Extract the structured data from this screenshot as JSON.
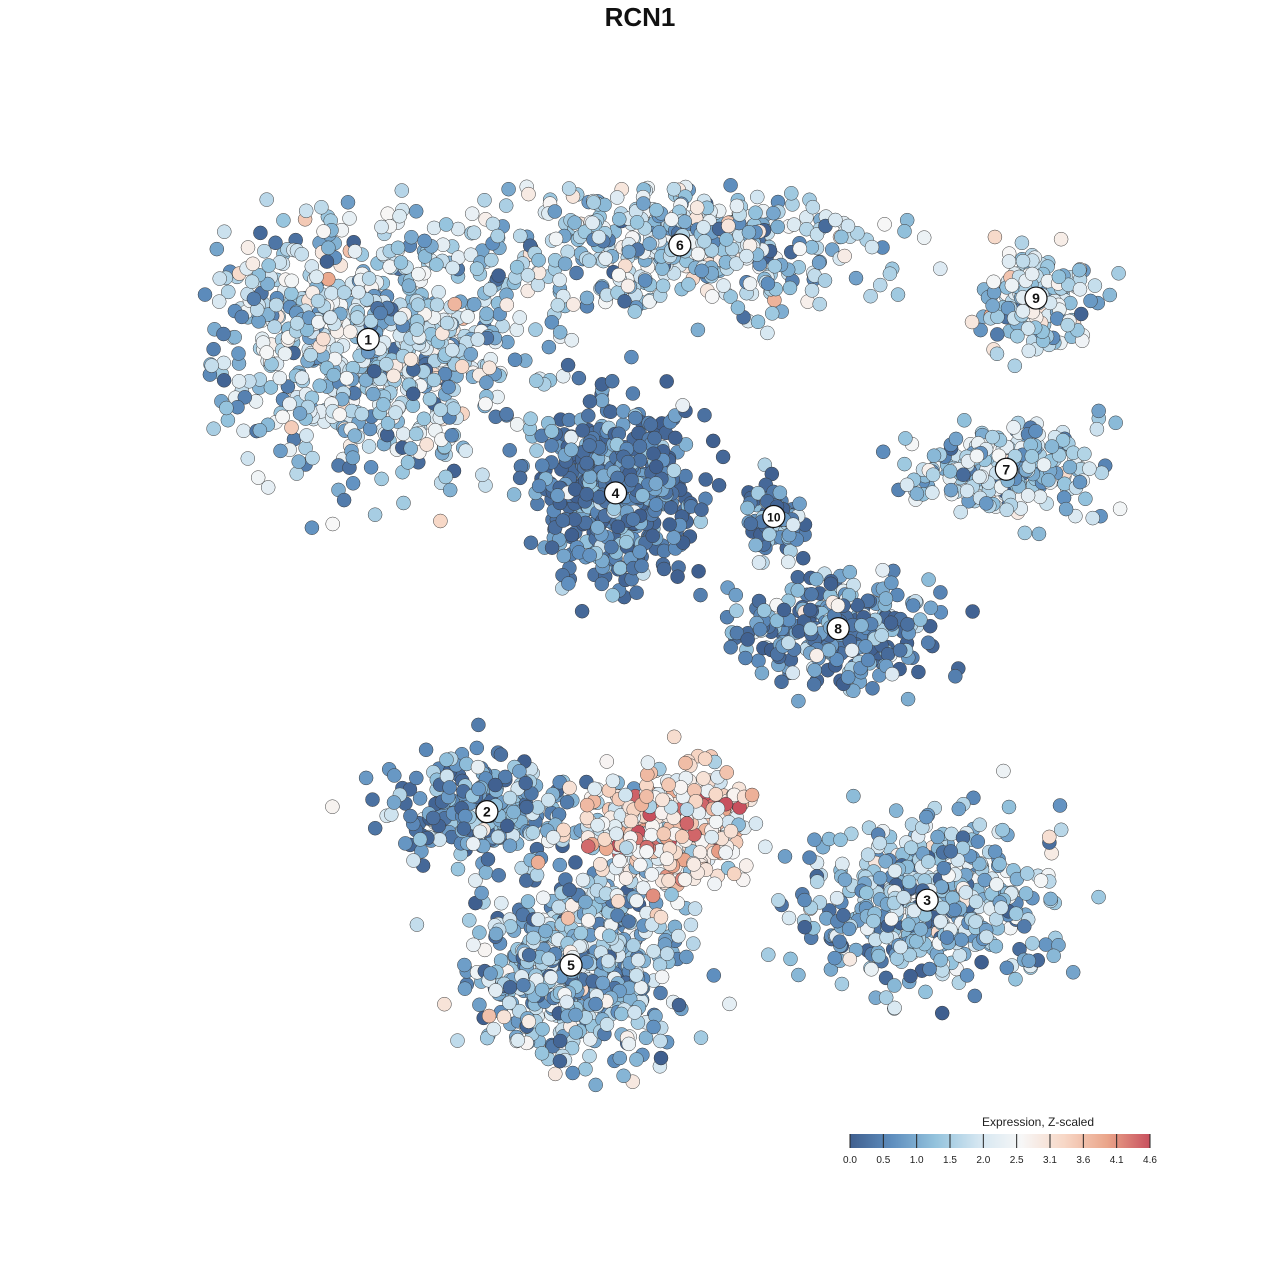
{
  "chart_data": {
    "type": "scatter",
    "title": "RCN1",
    "xlabel": "",
    "ylabel": "",
    "color_scale": {
      "label": "Expression, Z-scaled",
      "ticks": [
        "0.0",
        "0.5",
        "1.0",
        "1.5",
        "2.0",
        "2.5",
        "3.1",
        "3.6",
        "4.1",
        "4.6"
      ],
      "min": 0.0,
      "max": 4.6,
      "palette": [
        "#3f5f8f",
        "#5f8fbf",
        "#94c3dd",
        "#d4e6f1",
        "#f7f7f7",
        "#f7d7c6",
        "#eaa58a",
        "#c8505e"
      ]
    },
    "clusters": [
      {
        "label": "1",
        "x": -5.6,
        "y": 5.6,
        "spread": [
          3.2,
          2.0
        ],
        "expr_mean": 1.55,
        "cells": 800
      },
      {
        "label": "2",
        "x": -3.2,
        "y": -2.4,
        "spread": [
          1.8,
          0.8
        ],
        "expr_mean": 0.9,
        "cells": 260
      },
      {
        "label": "3",
        "x": 5.7,
        "y": -3.9,
        "spread": [
          2.2,
          1.2
        ],
        "expr_mean": 1.3,
        "cells": 500
      },
      {
        "label": "4",
        "x": -0.6,
        "y": 3.0,
        "spread": [
          1.4,
          1.3
        ],
        "expr_mean": 0.35,
        "cells": 520
      },
      {
        "label": "5",
        "x": -1.5,
        "y": -5.0,
        "spread": [
          1.9,
          1.4
        ],
        "expr_mean": 1.25,
        "cells": 600
      },
      {
        "label": "6",
        "x": 0.7,
        "y": 7.2,
        "spread": [
          3.4,
          1.0
        ],
        "expr_mean": 1.6,
        "cells": 480
      },
      {
        "label": "7",
        "x": 7.3,
        "y": 3.4,
        "spread": [
          1.8,
          0.7
        ],
        "expr_mean": 1.6,
        "cells": 240
      },
      {
        "label": "8",
        "x": 3.9,
        "y": 0.7,
        "spread": [
          1.8,
          0.8
        ],
        "expr_mean": 0.7,
        "cells": 300
      },
      {
        "label": "9",
        "x": 7.9,
        "y": 6.3,
        "spread": [
          1.0,
          0.8
        ],
        "expr_mean": 1.7,
        "cells": 180
      },
      {
        "label": "10",
        "x": 2.6,
        "y": 2.6,
        "spread": [
          0.5,
          0.6
        ],
        "expr_mean": 0.6,
        "cells": 90
      },
      {
        "label": "",
        "x": 0.4,
        "y": -2.6,
        "spread": [
          1.5,
          0.9
        ],
        "expr_mean": 2.9,
        "cells": 420
      }
    ],
    "xlim": [
      -9.0,
      9.8
    ],
    "ylim": [
      -7.2,
      8.3
    ],
    "grid": false,
    "legend": "bottom-right"
  }
}
